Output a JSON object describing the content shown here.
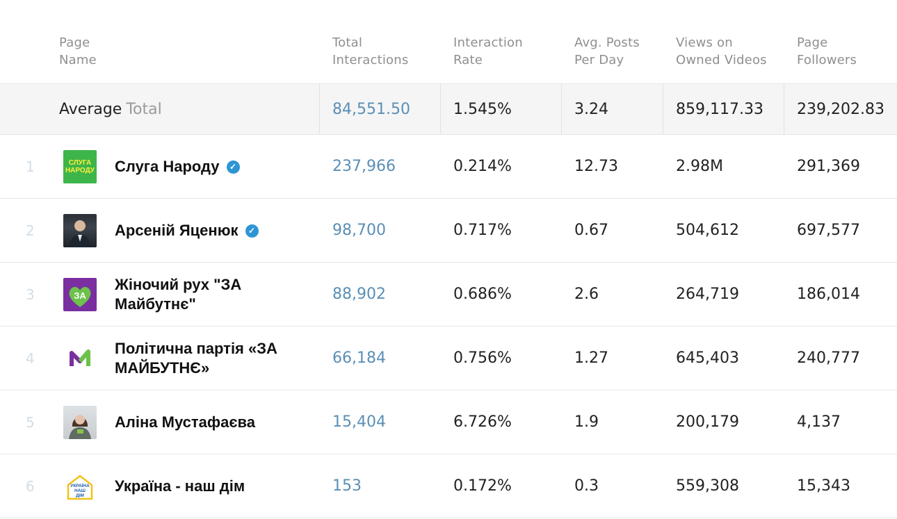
{
  "columns": {
    "page_name": [
      "Page",
      "Name"
    ],
    "total_interactions": [
      "Total",
      "Interactions"
    ],
    "interaction_rate": [
      "Interaction",
      "Rate"
    ],
    "avg_posts": [
      "Avg. Posts",
      "Per Day"
    ],
    "views": [
      "Views on",
      "Owned Videos"
    ],
    "followers": [
      "Page",
      "Followers"
    ]
  },
  "average": {
    "label": "Average",
    "sublabel": "Total",
    "total_interactions": "84,551.50",
    "interaction_rate": "1.545%",
    "avg_posts": "3.24",
    "views": "859,117.33",
    "followers": "239,202.83"
  },
  "rows": [
    {
      "rank": "1",
      "name": "Слуга Народу",
      "verified": true,
      "avatar": "sluha-narodu-logo",
      "avatar_text": [
        "СЛУГА",
        "НАРОДУ"
      ],
      "total_interactions": "237,966",
      "interaction_rate": "0.214%",
      "avg_posts": "12.73",
      "views": "2.98M",
      "followers": "291,369"
    },
    {
      "rank": "2",
      "name": "Арсеній Яценюк",
      "verified": true,
      "avatar": "portrait-photo",
      "total_interactions": "98,700",
      "interaction_rate": "0.717%",
      "avg_posts": "0.67",
      "views": "504,612",
      "followers": "697,577"
    },
    {
      "rank": "3",
      "name": "Жіночий рух \"ЗА Майбутнє\"",
      "verified": false,
      "avatar": "za-heart-logo",
      "total_interactions": "88,902",
      "interaction_rate": "0.686%",
      "avg_posts": "2.6",
      "views": "264,719",
      "followers": "186,014"
    },
    {
      "rank": "4",
      "name": "Політична партія «ЗА МАЙБУТНЄ»",
      "verified": false,
      "avatar": "m-checkmark-logo",
      "total_interactions": "66,184",
      "interaction_rate": "0.756%",
      "avg_posts": "1.27",
      "views": "645,403",
      "followers": "240,777"
    },
    {
      "rank": "5",
      "name": "Аліна Мустафаєва",
      "verified": false,
      "avatar": "portrait-photo",
      "total_interactions": "15,404",
      "interaction_rate": "6.726%",
      "avg_posts": "1.9",
      "views": "200,179",
      "followers": "4,137"
    },
    {
      "rank": "6",
      "name": "Україна - наш дім",
      "verified": false,
      "avatar": "house-logo",
      "avatar_text": [
        "УКРАЇНА",
        "НАШ",
        "ДІМ"
      ],
      "total_interactions": "153",
      "interaction_rate": "0.172%",
      "avg_posts": "0.3",
      "views": "559,308",
      "followers": "15,343"
    }
  ],
  "colors": {
    "link": "#5a8fb5",
    "header_text": "#8f8f8f",
    "average_bg": "#f5f5f5",
    "verified": "#2d95d4",
    "rank": "#d2dde5"
  }
}
